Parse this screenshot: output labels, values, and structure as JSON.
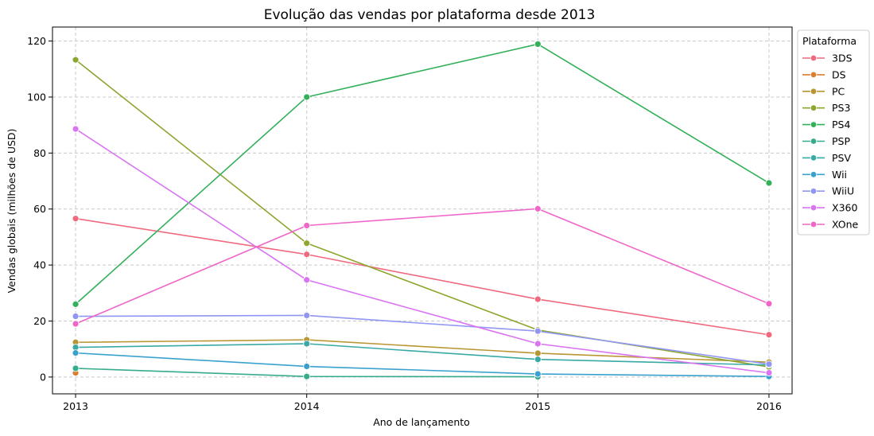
{
  "chart_data": {
    "type": "line",
    "title": "Evolução das vendas por plataforma desde 2013",
    "xlabel": "Ano de lançamento",
    "ylabel": "Vendas globais (milhões de USD)",
    "x": [
      2013,
      2014,
      2015,
      2016
    ],
    "x_tick_labels": [
      "2013",
      "2014",
      "2015",
      "2016"
    ],
    "ylim": [
      -6,
      125
    ],
    "y_ticks": [
      0,
      20,
      40,
      60,
      80,
      100,
      120
    ],
    "y_tick_labels": [
      "0",
      "20",
      "40",
      "60",
      "80",
      "100",
      "120"
    ],
    "grid": true,
    "legend_title": "Plataforma",
    "legend_position": "right",
    "series": [
      {
        "name": "3DS",
        "color": "#f0697f",
        "x": [
          2013,
          2014,
          2015,
          2016
        ],
        "values": [
          56.6,
          43.8,
          27.8,
          15.1
        ]
      },
      {
        "name": "DS",
        "color": "#dc7d2e",
        "x": [
          2013
        ],
        "values": [
          1.5
        ]
      },
      {
        "name": "PC",
        "color": "#b99634",
        "x": [
          2013,
          2014,
          2015,
          2016
        ],
        "values": [
          12.4,
          13.3,
          8.5,
          5.3
        ]
      },
      {
        "name": "PS3",
        "color": "#8ca630",
        "x": [
          2013,
          2014,
          2015,
          2016
        ],
        "values": [
          113.3,
          47.8,
          16.8,
          3.6
        ]
      },
      {
        "name": "PS4",
        "color": "#33b05a",
        "x": [
          2013,
          2014,
          2015,
          2016
        ],
        "values": [
          26.0,
          100.0,
          118.9,
          69.3
        ]
      },
      {
        "name": "PSP",
        "color": "#36ac8d",
        "x": [
          2013,
          2014,
          2015
        ],
        "values": [
          3.1,
          0.2,
          0.1
        ]
      },
      {
        "name": "PSV",
        "color": "#38a9a5",
        "x": [
          2013,
          2014,
          2015,
          2016
        ],
        "values": [
          10.6,
          11.9,
          6.3,
          4.3
        ]
      },
      {
        "name": "Wii",
        "color": "#3aa1cf",
        "x": [
          2013,
          2014,
          2015,
          2016
        ],
        "values": [
          8.6,
          3.8,
          1.1,
          0.2
        ]
      },
      {
        "name": "WiiU",
        "color": "#9196f2",
        "x": [
          2013,
          2014,
          2015,
          2016
        ],
        "values": [
          21.7,
          22.0,
          16.4,
          4.6
        ]
      },
      {
        "name": "X360",
        "color": "#d974f2",
        "x": [
          2013,
          2014,
          2015,
          2016
        ],
        "values": [
          88.6,
          34.7,
          11.9,
          1.5
        ]
      },
      {
        "name": "XOne",
        "color": "#f065c8",
        "x": [
          2013,
          2014,
          2015,
          2016
        ],
        "values": [
          19.0,
          54.1,
          60.1,
          26.2
        ]
      }
    ]
  }
}
